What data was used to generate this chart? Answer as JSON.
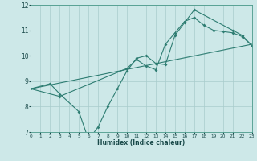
{
  "background_color": "#cde8e8",
  "grid_color": "#a8cccc",
  "line_color": "#2e7d72",
  "xlabel": "Humidex (Indice chaleur)",
  "xlim": [
    0,
    23
  ],
  "ylim": [
    7,
    12
  ],
  "xticks": [
    0,
    1,
    2,
    3,
    4,
    5,
    6,
    7,
    8,
    9,
    10,
    11,
    12,
    13,
    14,
    15,
    16,
    17,
    18,
    19,
    20,
    21,
    22,
    23
  ],
  "yticks": [
    7,
    8,
    9,
    10,
    11,
    12
  ],
  "line1_x": [
    0,
    23
  ],
  "line1_y": [
    8.7,
    10.45
  ],
  "line2_x": [
    0,
    2,
    3,
    5,
    6,
    7,
    8,
    9,
    10,
    11,
    12,
    13,
    14,
    15,
    16,
    17,
    21,
    22,
    23
  ],
  "line2_y": [
    8.7,
    8.9,
    8.5,
    7.8,
    6.7,
    7.2,
    8.0,
    8.7,
    9.4,
    9.9,
    10.0,
    9.7,
    9.65,
    10.8,
    11.3,
    11.8,
    11.0,
    10.8,
    10.4
  ],
  "line3_x": [
    0,
    3,
    10,
    11,
    12,
    13,
    14,
    15,
    16,
    17,
    18,
    19,
    20,
    21,
    22,
    23
  ],
  "line3_y": [
    8.7,
    8.4,
    9.5,
    9.85,
    9.6,
    9.45,
    10.45,
    10.9,
    11.35,
    11.5,
    11.2,
    11.0,
    10.95,
    10.9,
    10.75,
    10.4
  ]
}
